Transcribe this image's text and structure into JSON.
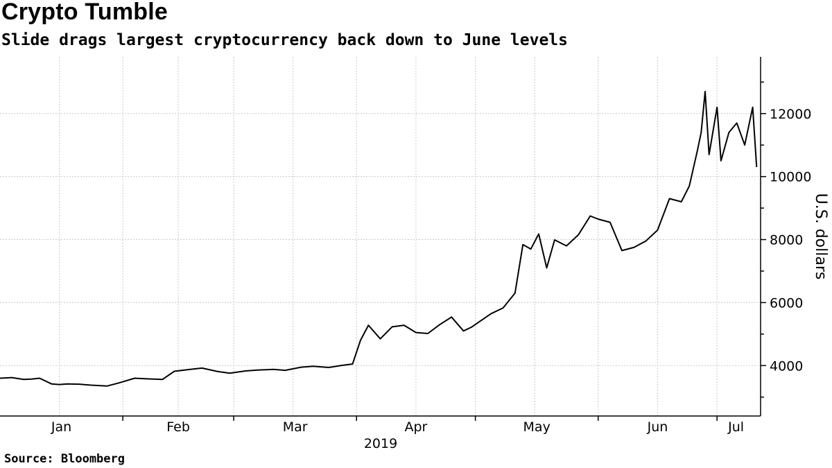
{
  "header": {
    "title": "Crypto Tumble",
    "subtitle": "Slide drags largest cryptocurrency back down to June levels"
  },
  "footer": {
    "source": "Source:  Bloomberg"
  },
  "colors": {
    "line": "#000000",
    "grid": "#c8c8c8",
    "axis": "#000000"
  },
  "chart_data": {
    "type": "line",
    "title": "Crypto Tumble",
    "subtitle": "Slide drags largest cryptocurrency back down to June levels",
    "xlabel": "2019",
    "ylabel": "U.S. dollars",
    "y_axis_side": "right",
    "ylim": [
      2400,
      13800
    ],
    "yticks": [
      4000,
      6000,
      8000,
      10000,
      12000
    ],
    "grid": true,
    "x_tick_labels": [
      "Jan",
      "Feb",
      "Mar",
      "Apr",
      "May",
      "Jun",
      "Jul"
    ],
    "x_start": "2019-01-01",
    "x_end": "2019-07-12",
    "series": [
      {
        "x": [
          "2019-01-01",
          "2019-01-04",
          "2019-01-07",
          "2019-01-09",
          "2019-01-11",
          "2019-01-14",
          "2019-01-16",
          "2019-01-18",
          "2019-01-21",
          "2019-01-24",
          "2019-01-28",
          "2019-01-31",
          "2019-02-04",
          "2019-02-07",
          "2019-02-11",
          "2019-02-14",
          "2019-02-18",
          "2019-02-21",
          "2019-02-25",
          "2019-02-28",
          "2019-03-04",
          "2019-03-07",
          "2019-03-11",
          "2019-03-14",
          "2019-03-18",
          "2019-03-21",
          "2019-03-25",
          "2019-03-28",
          "2019-03-31",
          "2019-04-02",
          "2019-04-04",
          "2019-04-07",
          "2019-04-10",
          "2019-04-13",
          "2019-04-16",
          "2019-04-19",
          "2019-04-22",
          "2019-04-25",
          "2019-04-28",
          "2019-04-30",
          "2019-05-02",
          "2019-05-05",
          "2019-05-08",
          "2019-05-11",
          "2019-05-13",
          "2019-05-15",
          "2019-05-17",
          "2019-05-19",
          "2019-05-21",
          "2019-05-24",
          "2019-05-27",
          "2019-05-30",
          "2019-06-01",
          "2019-06-04",
          "2019-06-07",
          "2019-06-10",
          "2019-06-13",
          "2019-06-16",
          "2019-06-19",
          "2019-06-22",
          "2019-06-24",
          "2019-06-26",
          "2019-06-27",
          "2019-06-28",
          "2019-06-29",
          "2019-07-01",
          "2019-07-02",
          "2019-07-04",
          "2019-07-06",
          "2019-07-08",
          "2019-07-10",
          "2019-07-11"
        ],
        "values": [
          3600,
          3620,
          3560,
          3570,
          3600,
          3420,
          3400,
          3420,
          3410,
          3380,
          3350,
          3450,
          3600,
          3580,
          3560,
          3820,
          3880,
          3920,
          3810,
          3760,
          3830,
          3860,
          3880,
          3850,
          3950,
          3980,
          3940,
          4000,
          4050,
          4800,
          5280,
          4850,
          5230,
          5280,
          5050,
          5020,
          5300,
          5540,
          5100,
          5220,
          5390,
          5650,
          5830,
          6300,
          7840,
          7700,
          8180,
          7100,
          7990,
          7800,
          8150,
          8750,
          8650,
          8550,
          7650,
          7750,
          7950,
          8300,
          9300,
          9200,
          9700,
          10800,
          11400,
          12700,
          10700,
          12200,
          10500,
          11400,
          11700,
          11000,
          12200,
          10300
        ]
      }
    ]
  }
}
